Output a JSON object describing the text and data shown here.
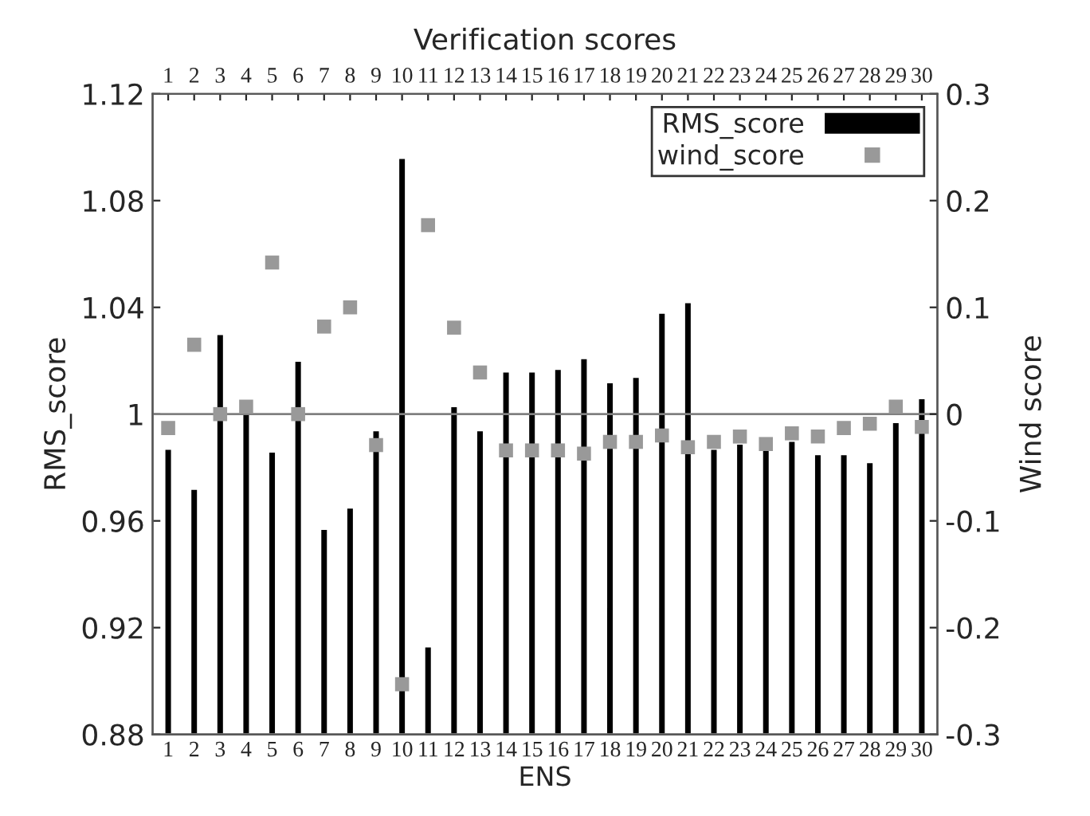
{
  "chart_data": {
    "type": "bar",
    "title": "Verification scores",
    "xlabel": "ENS",
    "ylabel": "RMS_score",
    "y2label": "Wind score",
    "categories": [
      "1",
      "2",
      "3",
      "4",
      "5",
      "6",
      "7",
      "8",
      "9",
      "10",
      "11",
      "12",
      "13",
      "14",
      "15",
      "16",
      "17",
      "18",
      "19",
      "20",
      "21",
      "22",
      "23",
      "24",
      "25",
      "26",
      "27",
      "28",
      "29",
      "30"
    ],
    "series": [
      {
        "name": "RMS_score",
        "color": "#000000",
        "values": [
          0.987,
          0.972,
          1.03,
          1.001,
          0.986,
          1.02,
          0.957,
          0.965,
          0.994,
          1.096,
          0.913,
          1.003,
          0.994,
          1.016,
          1.016,
          1.017,
          1.021,
          1.012,
          1.014,
          1.038,
          1.042,
          0.987,
          0.989,
          0.987,
          0.99,
          0.985,
          0.985,
          0.982,
          0.997,
          1.006
        ]
      },
      {
        "name": "wind_score",
        "type": "scatter",
        "axis": "y2",
        "marker": "square",
        "color": "#999999",
        "values": [
          -0.013,
          0.065,
          0.0,
          0.007,
          0.142,
          0.0,
          0.082,
          0.1,
          -0.029,
          -0.253,
          0.177,
          0.081,
          0.039,
          -0.034,
          -0.034,
          -0.034,
          -0.037,
          -0.026,
          -0.026,
          -0.02,
          -0.031,
          -0.026,
          -0.021,
          -0.028,
          -0.018,
          -0.021,
          -0.013,
          -0.009,
          0.007,
          -0.012
        ]
      }
    ],
    "ylim": [
      0.88,
      1.12
    ],
    "yticks": [
      0.88,
      0.92,
      0.96,
      1,
      1.04,
      1.08,
      1.12
    ],
    "y2lim": [
      -0.3,
      0.3
    ],
    "y2ticks": [
      -0.3,
      -0.2,
      -0.1,
      0,
      0.1,
      0.2,
      0.3
    ],
    "ref_lines": [
      {
        "axis": "y",
        "value": 1,
        "color": "#808080"
      }
    ],
    "legend": "top right",
    "grid": false
  }
}
